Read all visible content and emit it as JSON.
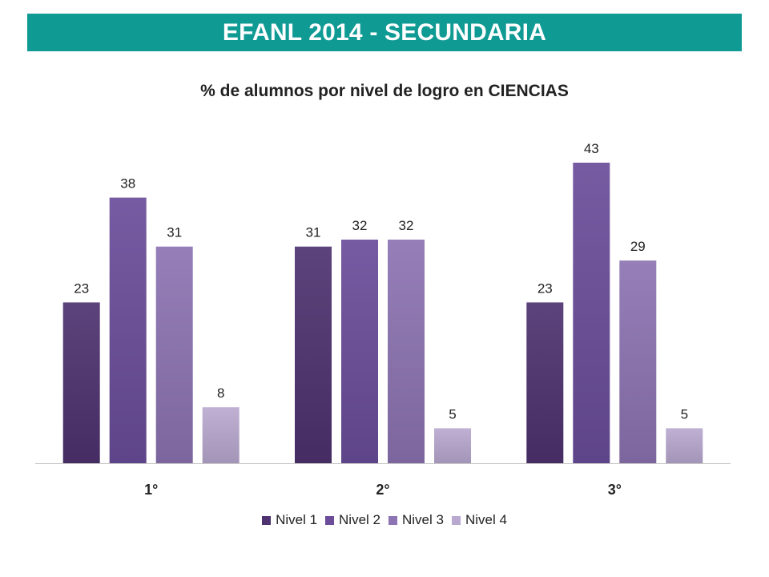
{
  "banner": {
    "title": "EFANL 2014 - SECUNDARIA"
  },
  "chart_data": {
    "type": "bar",
    "title": "% de alumnos por nivel de logro en CIENCIAS",
    "categories": [
      "1°",
      "2°",
      "3°"
    ],
    "series": [
      {
        "name": "Nivel 1",
        "values": [
          23,
          31,
          23
        ],
        "color": "#4e3370"
      },
      {
        "name": "Nivel 2",
        "values": [
          38,
          32,
          43
        ],
        "color": "#6b4d9a"
      },
      {
        "name": "Nivel 3",
        "values": [
          31,
          32,
          29
        ],
        "color": "#8d74b2"
      },
      {
        "name": "Nivel 4",
        "values": [
          8,
          5,
          5
        ],
        "color": "#b9a9d0"
      }
    ],
    "ylim": [
      0,
      50
    ],
    "grid": false,
    "legend": "bottom",
    "data_labels": true
  }
}
